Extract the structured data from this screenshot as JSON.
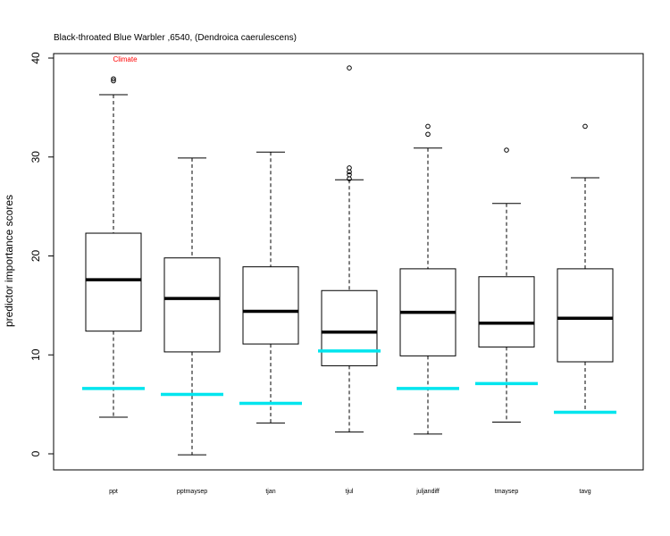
{
  "chart_data": {
    "type": "boxplot",
    "title": "Black-throated Blue Warbler ,6540, (Dendroica caerulescens)",
    "xlabel": "",
    "ylabel": "predictor importance scores",
    "ylim": [
      0,
      40
    ],
    "yticks": [
      "0",
      "10",
      "20",
      "30",
      "40"
    ],
    "grid": false,
    "annotation": {
      "text": "Climate",
      "color": "#ff0000",
      "category": "ppt",
      "y": 40
    },
    "reference_color": "#00e5ee",
    "categories": [
      "ppt",
      "pptmaysep",
      "tjan",
      "tjul",
      "juljandiff",
      "tmaysep",
      "tavg"
    ],
    "boxes": [
      {
        "name": "ppt",
        "whisker_low": 3.7,
        "q1": 12.4,
        "median": 17.6,
        "q3": 22.3,
        "whisker_high": 36.3,
        "outliers": [
          37.7,
          37.9
        ],
        "reference": 6.6
      },
      {
        "name": "pptmaysep",
        "whisker_low": -0.1,
        "q1": 10.3,
        "median": 15.7,
        "q3": 19.8,
        "whisker_high": 29.9,
        "outliers": [],
        "reference": 6.0
      },
      {
        "name": "tjan",
        "whisker_low": 3.1,
        "q1": 11.1,
        "median": 14.4,
        "q3": 18.9,
        "whisker_high": 30.5,
        "outliers": [],
        "reference": 5.1
      },
      {
        "name": "tjul",
        "whisker_low": 2.2,
        "q1": 8.9,
        "median": 12.3,
        "q3": 16.5,
        "whisker_high": 27.7,
        "outliers": [
          27.8,
          28.2,
          28.5,
          28.9,
          39.0
        ],
        "reference": 10.4
      },
      {
        "name": "juljandiff",
        "whisker_low": 2.0,
        "q1": 9.9,
        "median": 14.3,
        "q3": 18.7,
        "whisker_high": 30.9,
        "outliers": [
          32.3,
          33.1
        ],
        "reference": 6.6
      },
      {
        "name": "tmaysep",
        "whisker_low": 3.2,
        "q1": 10.8,
        "median": 13.2,
        "q3": 17.9,
        "whisker_high": 25.3,
        "outliers": [
          30.7
        ],
        "reference": 7.1
      },
      {
        "name": "tavg",
        "whisker_low": 4.2,
        "q1": 9.3,
        "median": 13.7,
        "q3": 18.7,
        "whisker_high": 27.9,
        "outliers": [
          33.1
        ],
        "reference": 4.2
      }
    ]
  }
}
